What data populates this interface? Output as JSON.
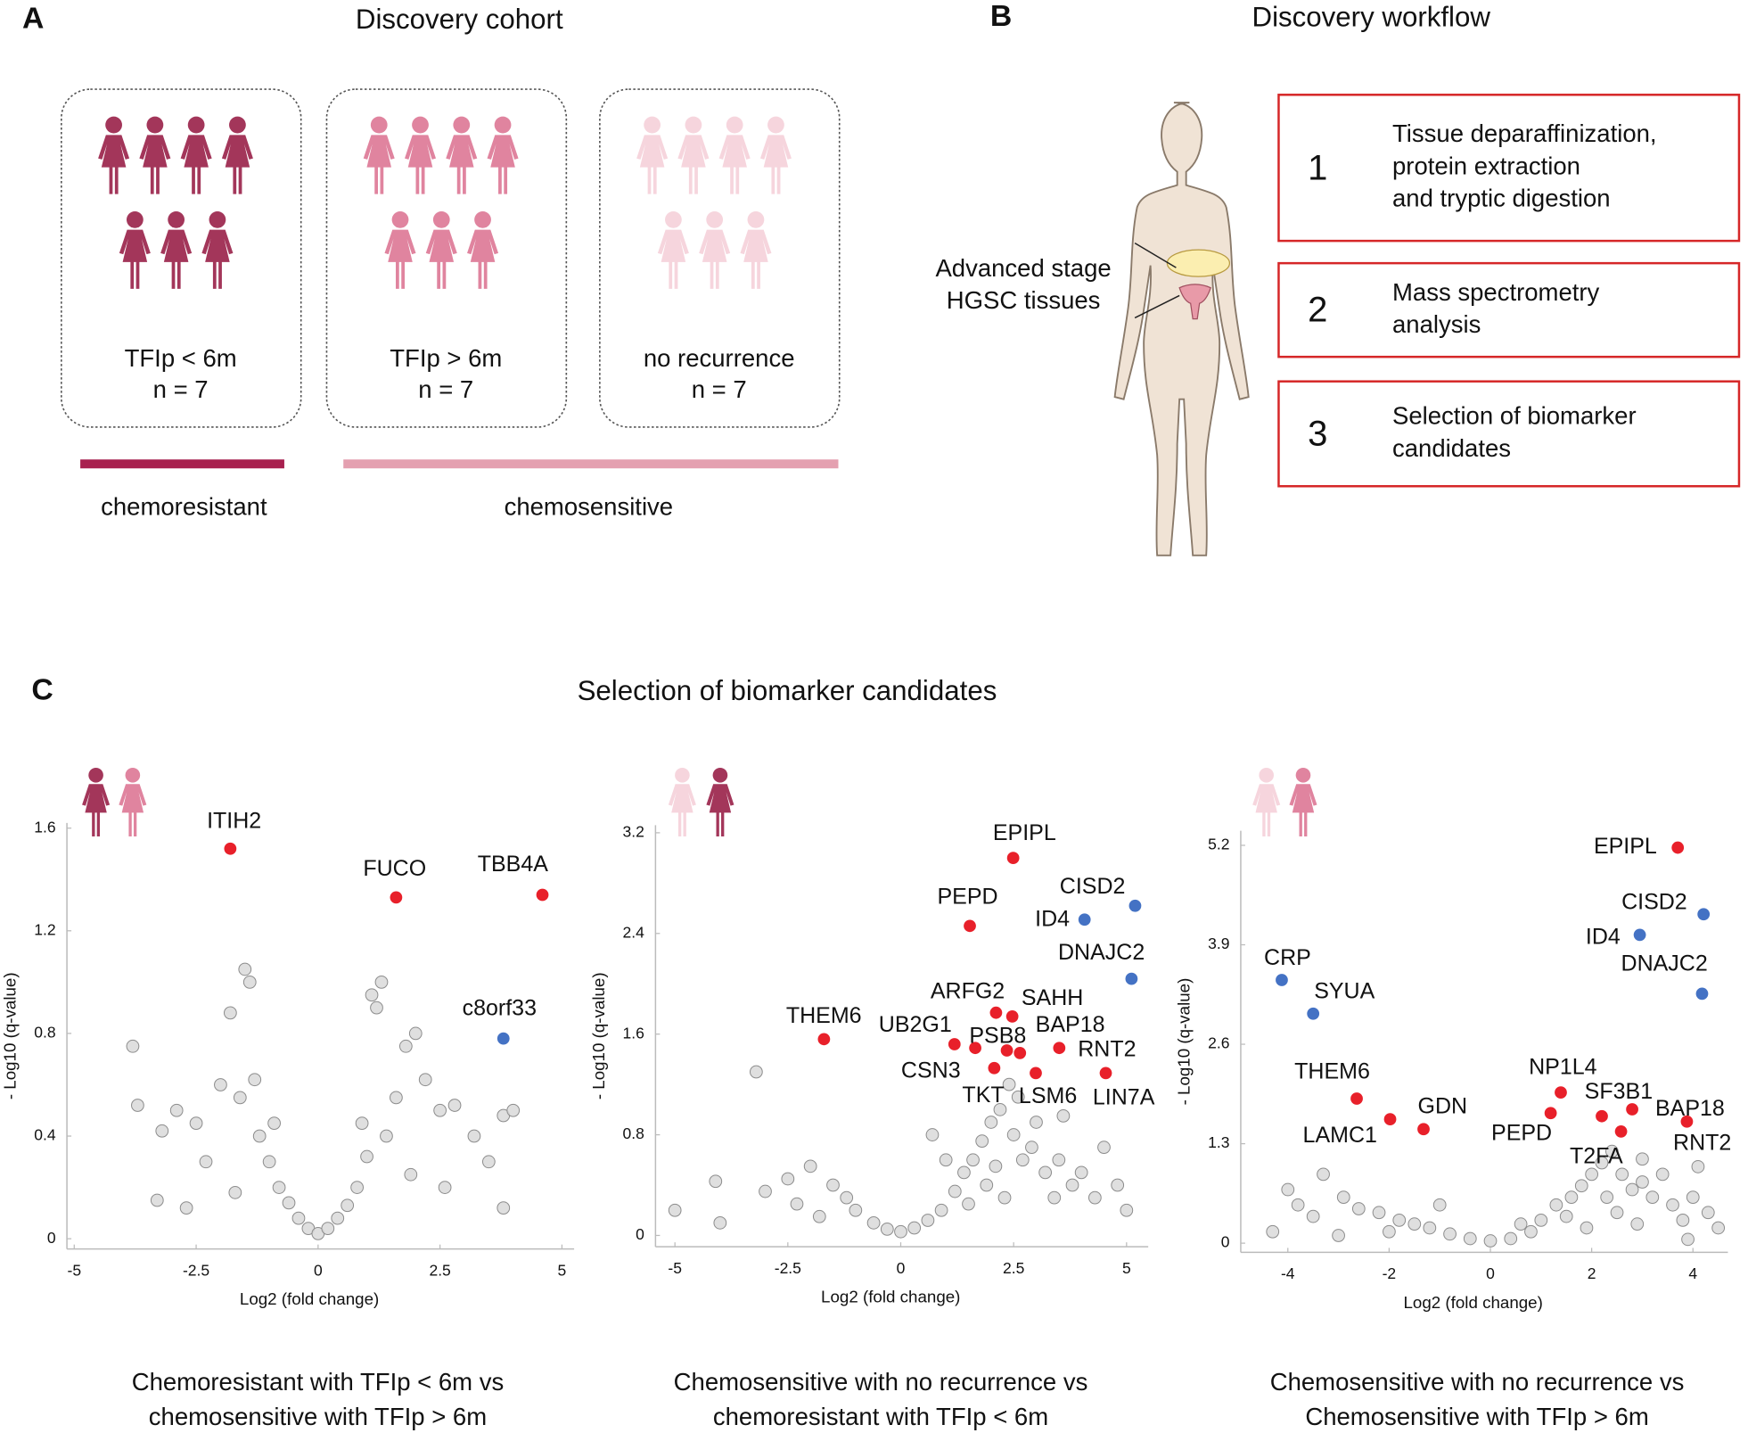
{
  "panel_a": {
    "label": "A",
    "title": "Discovery cohort",
    "groups": [
      {
        "name": "TFIp < 6m",
        "n": "n = 7",
        "color": "#a3365a"
      },
      {
        "name": "TFIp > 6m",
        "n": "n = 7",
        "color": "#e0849f"
      },
      {
        "name": "no recurrence",
        "n": "n = 7",
        "color": "#f6d5dd"
      }
    ],
    "bars": [
      {
        "label": "chemoresistant",
        "color": "#a8214f"
      },
      {
        "label": "chemosensitive",
        "color": "#e4a0b0"
      }
    ]
  },
  "panel_b": {
    "label": "B",
    "title": "Discovery workflow",
    "tissue_label": [
      "Advanced stage",
      "HGSC  tissues"
    ],
    "steps": [
      {
        "number": "1",
        "lines": [
          "Tissue deparaffinization,",
          "protein extraction",
          "and tryptic digestion"
        ]
      },
      {
        "number": "2",
        "lines": [
          "Mass spectrometry",
          "analysis"
        ]
      },
      {
        "number": "3",
        "lines": [
          "Selection of biomarker",
          "candidates"
        ]
      }
    ],
    "step_color": "#d62728"
  },
  "panel_c": {
    "label": "C",
    "title": "Selection of biomarker candidates"
  },
  "chart_data": [
    {
      "type": "scatter",
      "icon_colors": [
        "#a3365a",
        "#e0849f"
      ],
      "xlabel": "Log2 (fold change)",
      "ylabel": "- Log10 (q-value)",
      "caption": [
        "Chemoresistant with TFIp < 6m vs",
        "chemosensitive with TFIp > 6m"
      ],
      "xlim": [
        -5.15,
        5.25
      ],
      "ylim": [
        -0.04,
        1.62
      ],
      "xticks": [
        -5,
        -2.5,
        0,
        2.5,
        5
      ],
      "yticks": [
        0,
        0.4,
        0.8,
        1.2,
        1.6
      ],
      "series": [
        {
          "color": "#d9d9d9",
          "x": [
            -3.8,
            -3.7,
            -3.2,
            -2.9,
            -2.5,
            -2.3,
            -2.0,
            -1.8,
            -1.6,
            -1.5,
            -1.4,
            -1.3,
            -1.2,
            -1.0,
            -0.8,
            -0.6,
            -0.4,
            -0.2,
            0,
            0.2,
            0.4,
            0.6,
            0.8,
            1.0,
            1.1,
            1.2,
            1.3,
            1.4,
            1.6,
            1.8,
            2.0,
            2.2,
            2.5,
            2.8,
            3.2,
            3.5,
            3.8,
            4.0,
            -1.7,
            -2.7,
            1.9,
            2.6,
            -0.9,
            0.9,
            -3.3,
            3.8
          ],
          "values": [
            0.75,
            0.52,
            0.42,
            0.5,
            0.45,
            0.3,
            0.6,
            0.88,
            0.55,
            1.05,
            1.0,
            0.62,
            0.4,
            0.3,
            0.2,
            0.14,
            0.08,
            0.04,
            0.02,
            0.04,
            0.08,
            0.13,
            0.2,
            0.32,
            0.95,
            0.9,
            1.0,
            0.4,
            0.55,
            0.75,
            0.8,
            0.62,
            0.5,
            0.52,
            0.4,
            0.3,
            0.48,
            0.5,
            0.18,
            0.12,
            0.25,
            0.2,
            0.45,
            0.45,
            0.15,
            0.12
          ]
        },
        {
          "color": "#e8202a",
          "x": [
            -1.8,
            1.6,
            4.6
          ],
          "values": [
            1.52,
            1.33,
            1.34
          ],
          "labels": [
            "ITIH2",
            "FUCO",
            "TBB4A"
          ]
        },
        {
          "color": "#4472c4",
          "x": [
            3.8
          ],
          "values": [
            0.78
          ],
          "labels": [
            "c8orf33"
          ]
        }
      ]
    },
    {
      "type": "scatter",
      "icon_colors": [
        "#f6d5dd",
        "#a3365a"
      ],
      "xlabel": "Log2 (fold change)",
      "ylabel": "- Log10 (q-value)",
      "caption": [
        "Chemosensitive with no recurrence vs",
        "chemoresistant with TFIp < 6m"
      ],
      "xlim": [
        -5.43,
        5.48
      ],
      "ylim": [
        -0.09,
        3.26
      ],
      "xticks": [
        -5,
        -2.5,
        0,
        2.5,
        5
      ],
      "yticks": [
        0,
        0.8,
        1.6,
        2.4,
        3.2
      ],
      "series": [
        {
          "color": "#d9d9d9",
          "x": [
            -5,
            -4.1,
            -3.2,
            -3.0,
            -2.5,
            -2.0,
            -1.5,
            -1.2,
            -1.0,
            -0.6,
            -0.3,
            0,
            0.3,
            0.6,
            0.9,
            1.2,
            1.4,
            1.6,
            1.8,
            2.0,
            2.2,
            2.4,
            2.5,
            2.7,
            2.9,
            3.2,
            3.5,
            3.8,
            4.0,
            4.3,
            4.8,
            5.0,
            -2.3,
            -1.8,
            1.0,
            1.9,
            2.3,
            3.0,
            3.4,
            4.5,
            -4.0,
            0.7,
            2.6,
            1.5,
            2.1,
            3.6
          ],
          "values": [
            0.2,
            0.43,
            1.3,
            0.35,
            0.45,
            0.55,
            0.4,
            0.3,
            0.2,
            0.1,
            0.05,
            0.03,
            0.06,
            0.12,
            0.2,
            0.35,
            0.5,
            0.6,
            0.75,
            0.9,
            1.0,
            1.2,
            0.8,
            0.6,
            0.7,
            0.5,
            0.6,
            0.4,
            0.5,
            0.3,
            0.4,
            0.2,
            0.25,
            0.15,
            0.6,
            0.4,
            0.3,
            0.9,
            0.3,
            0.7,
            0.1,
            0.8,
            1.1,
            0.25,
            0.55,
            0.95
          ]
        },
        {
          "color": "#e8202a",
          "x": [
            2.49,
            1.53,
            -1.7,
            2.11,
            2.47,
            1.19,
            1.65,
            2.35,
            2.64,
            3.51,
            2.07,
            2.99,
            4.54
          ],
          "values": [
            3.0,
            2.46,
            1.56,
            1.77,
            1.74,
            1.52,
            1.49,
            1.47,
            1.45,
            1.49,
            1.33,
            1.29,
            1.29
          ],
          "labels": [
            "EPIPL",
            "PEPD",
            "THEM6",
            "ARFG2",
            "SAHH",
            "UB2G1",
            "PSB8",
            "TKT",
            "BAP18",
            "RNT2",
            "CSN3",
            "LSM6",
            "LIN7A"
          ]
        },
        {
          "color": "#4472c4",
          "x": [
            5.19,
            4.07,
            5.11
          ],
          "values": [
            2.62,
            2.51,
            2.04
          ],
          "labels": [
            "CISD2",
            "ID4",
            "DNAJC2"
          ]
        }
      ]
    },
    {
      "type": "scatter",
      "icon_colors": [
        "#f6d5dd",
        "#e0849f"
      ],
      "xlabel": "Log2 (fold change)",
      "ylabel": "- Log10 (q-value)",
      "caption": [
        "Chemosensitive with no recurrence vs",
        "Chemosensitive with TFIp > 6m"
      ],
      "xlim": [
        -4.93,
        4.69
      ],
      "ylim": [
        -0.12,
        5.39
      ],
      "xticks": [
        -4,
        -2,
        0,
        2,
        4
      ],
      "yticks": [
        0,
        1.3,
        2.6,
        3.9,
        5.2
      ],
      "series": [
        {
          "color": "#d9d9d9",
          "x": [
            -4.3,
            -3.8,
            -3.5,
            -3.3,
            -2.9,
            -2.6,
            -2.2,
            -1.8,
            -1.5,
            -1.2,
            -0.8,
            -0.4,
            0,
            0.4,
            0.8,
            1.0,
            1.3,
            1.6,
            1.8,
            2.0,
            2.2,
            2.4,
            2.6,
            2.8,
            3.0,
            3.2,
            3.4,
            3.6,
            3.8,
            4.0,
            4.3,
            4.5,
            3.9,
            -2.0,
            -1.0,
            1.5,
            2.5,
            3.0,
            4.1,
            -4.0,
            -3.0,
            0.6,
            1.9,
            2.3,
            2.9
          ],
          "values": [
            0.15,
            0.5,
            0.35,
            0.9,
            0.6,
            0.45,
            0.4,
            0.3,
            0.25,
            0.2,
            0.12,
            0.06,
            0.03,
            0.06,
            0.15,
            0.3,
            0.5,
            0.6,
            0.75,
            0.9,
            1.05,
            1.2,
            0.9,
            0.7,
            0.8,
            0.6,
            0.9,
            0.5,
            0.3,
            0.6,
            0.4,
            0.2,
            0.05,
            0.15,
            0.5,
            0.35,
            0.4,
            1.1,
            1.0,
            0.7,
            0.1,
            0.25,
            0.2,
            0.6,
            0.25
          ]
        },
        {
          "color": "#e8202a",
          "x": [
            3.7,
            -2.64,
            -1.98,
            -1.32,
            1.39,
            1.19,
            2.2,
            2.8,
            2.58,
            3.88
          ],
          "values": [
            5.17,
            1.89,
            1.62,
            1.49,
            1.97,
            1.7,
            1.66,
            1.75,
            1.46,
            1.59
          ],
          "labels": [
            "EPIPL",
            "THEM6",
            "LAMC1",
            "GDN",
            "NP1L4",
            "PEPD",
            "SF3B1",
            "BAP18",
            "T2FA",
            "RNT2"
          ]
        },
        {
          "color": "#4472c4",
          "x": [
            4.21,
            2.95,
            4.18,
            -4.12,
            -3.5
          ],
          "values": [
            4.3,
            4.03,
            3.26,
            3.44,
            3.0
          ],
          "labels": [
            "CISD2",
            "ID4",
            "DNAJC2",
            "CRP",
            "SYUA"
          ]
        }
      ]
    }
  ]
}
